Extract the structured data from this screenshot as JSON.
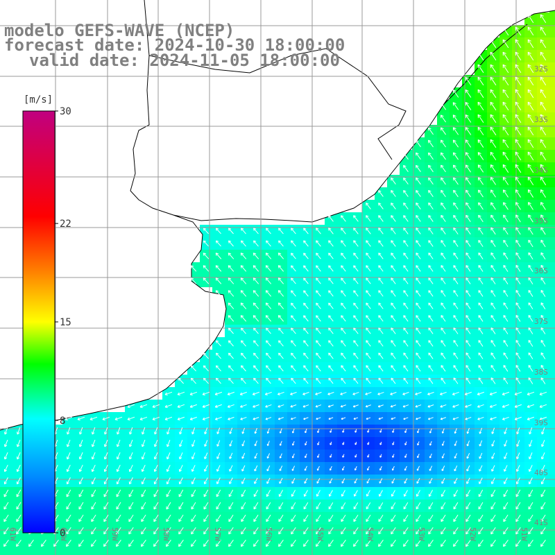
{
  "title": {
    "line1": "modelo GEFS-WAVE (NCEP)",
    "line2": "forecast date: 2024-10-30 18:00:00",
    "line3": "valid date: 2024-11-05 18:00:00"
  },
  "colorbar": {
    "unit": "[m/s]",
    "ticks": [
      "30",
      "22",
      "15",
      "8",
      "0"
    ],
    "tick_values": [
      30,
      22,
      15,
      8,
      0
    ],
    "min": 0,
    "max": 30
  },
  "map": {
    "lat_labels": [
      "32S",
      "33S",
      "34S",
      "35S",
      "36S",
      "37S",
      "38S",
      "39S",
      "40S",
      "41S"
    ],
    "lon_labels": [
      "61W",
      "60W",
      "59W",
      "58W",
      "57W",
      "56W",
      "55W",
      "54W",
      "53W",
      "52W",
      "51W"
    ],
    "land_color": "#ffffff",
    "coast_color": "#000000",
    "grid_color": "#999999"
  },
  "chart_data": {
    "type": "heatmap",
    "variable": "wind speed with direction arrows",
    "unit": "m/s",
    "region": {
      "lon_range": [
        -61,
        -51
      ],
      "lat_range": [
        -41.5,
        -29.5
      ]
    }
  }
}
